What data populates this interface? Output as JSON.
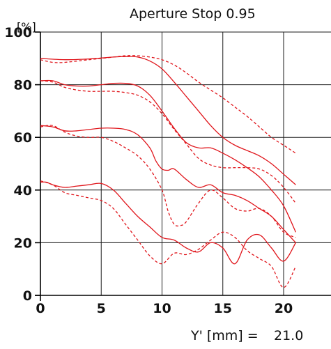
{
  "chart_data": {
    "type": "line",
    "title": "Aperture Stop 0.95",
    "ylabel": "[%]",
    "xlabel": "Y' [mm] =",
    "xlabel_value": "21.0",
    "xlim": [
      0,
      21
    ],
    "ylim": [
      0,
      100
    ],
    "xticks": [
      0,
      5,
      10,
      15,
      20
    ],
    "yticks": [
      0,
      20,
      40,
      60,
      80,
      100
    ],
    "grid": true,
    "legend": "none",
    "color": "#e0151b",
    "series": [
      {
        "style": "solid",
        "x": [
          0,
          2,
          4,
          6,
          7,
          8,
          9,
          10,
          11,
          12,
          13,
          14,
          15,
          16,
          17,
          18,
          19,
          20,
          21
        ],
        "values": [
          90,
          89.5,
          89.8,
          90.5,
          90.7,
          90.5,
          89,
          86,
          81,
          75.5,
          70,
          64.5,
          60,
          57,
          55,
          53,
          50,
          46,
          42
        ]
      },
      {
        "style": "dashed",
        "x": [
          0,
          1,
          2,
          4,
          6,
          7,
          8,
          9,
          10,
          11,
          12,
          13,
          14,
          15,
          16,
          17,
          18,
          19,
          20,
          21
        ],
        "values": [
          89.5,
          88.5,
          88.5,
          89.5,
          90.5,
          91,
          91,
          90.5,
          89.5,
          87.5,
          84.5,
          81,
          78,
          75,
          71.5,
          68,
          64,
          60,
          57,
          54
        ]
      },
      {
        "style": "solid",
        "x": [
          0,
          1,
          2,
          3,
          4,
          5,
          6,
          7,
          8,
          9,
          10,
          11,
          12,
          13,
          14,
          15,
          16,
          17,
          18,
          19,
          20,
          21
        ],
        "values": [
          81.5,
          81.5,
          80,
          79.5,
          79.5,
          80,
          80.5,
          80.5,
          79.5,
          76,
          70,
          63.5,
          58,
          56,
          56,
          54,
          51.5,
          48.5,
          45,
          40,
          34,
          24
        ]
      },
      {
        "style": "dashed",
        "x": [
          0,
          1,
          2,
          3,
          4,
          5,
          6,
          7,
          8,
          9,
          10,
          11,
          12,
          13,
          14,
          15,
          16,
          17,
          18,
          19,
          20,
          21
        ],
        "values": [
          81.5,
          81,
          79,
          78,
          77.5,
          77.5,
          77.5,
          77,
          76,
          73.5,
          69,
          63,
          57.5,
          52,
          49.5,
          48.5,
          48.5,
          48.5,
          48,
          45.5,
          41,
          35
        ]
      },
      {
        "style": "solid",
        "x": [
          0,
          1,
          2,
          3,
          4,
          5,
          6,
          7,
          8,
          9,
          9.5,
          10,
          10.5,
          11,
          12,
          13,
          14,
          15,
          16,
          17,
          18,
          19,
          20,
          21
        ],
        "values": [
          64.5,
          64,
          62.5,
          62.5,
          63,
          63.5,
          63.5,
          63,
          61,
          56,
          51,
          48,
          47.5,
          48,
          44,
          41,
          42,
          39,
          38,
          36,
          33,
          30,
          25,
          20
        ]
      },
      {
        "style": "dashed",
        "x": [
          0,
          1,
          2,
          3,
          4,
          5,
          6,
          7,
          8,
          9,
          10,
          10.5,
          11,
          11.5,
          12,
          13,
          14,
          15,
          16,
          17,
          18,
          19,
          20,
          21
        ],
        "values": [
          64,
          64.5,
          62,
          60.5,
          60,
          60,
          58.5,
          56,
          53,
          48,
          40,
          32,
          27,
          26.5,
          28,
          35,
          40,
          37,
          33,
          32,
          33,
          30,
          24,
          22
        ]
      },
      {
        "style": "solid",
        "x": [
          0,
          0.5,
          1,
          2,
          3,
          4,
          5,
          6,
          7,
          8,
          9,
          10,
          11,
          12,
          13,
          14,
          15,
          16,
          17,
          18,
          19,
          20,
          21
        ],
        "values": [
          43,
          43,
          42,
          41,
          41.5,
          42,
          42.5,
          40,
          35,
          30,
          26,
          22,
          21,
          18,
          16.5,
          20,
          18,
          12,
          21,
          23,
          18,
          13,
          20
        ]
      },
      {
        "style": "dashed",
        "x": [
          0,
          1,
          2,
          3,
          4,
          5,
          6,
          7,
          8,
          9,
          10,
          11,
          12,
          13,
          14,
          15,
          16,
          17,
          18,
          19,
          20,
          21
        ],
        "values": [
          43.5,
          42,
          39,
          38,
          37,
          36,
          33,
          27,
          21,
          15,
          12,
          16,
          15.5,
          17.5,
          21,
          24,
          22,
          17,
          14,
          11,
          3,
          11
        ]
      }
    ]
  }
}
